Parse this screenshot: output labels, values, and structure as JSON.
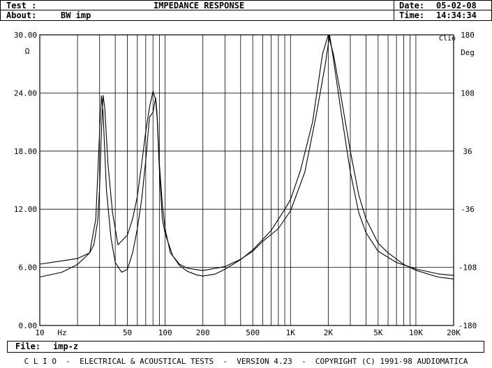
{
  "header": {
    "test_label": "Test :",
    "about_label": "About:",
    "about_value": "BW imp",
    "title": "IMPEDANCE RESPONSE",
    "date_label": "Date:",
    "date_value": "05-02-08",
    "time_label": "Time:",
    "time_value": "14:34:34"
  },
  "brand_mark": "Clio",
  "file": {
    "label": "File:",
    "value": "imp-z"
  },
  "footer": {
    "text": "C L I O  -  ELECTRICAL & ACOUSTICAL TESTS  -  VERSION 4.23  -  COPYRIGHT (C) 1991-98 AUDIOMATICA"
  },
  "chart_data": {
    "type": "line",
    "title": "IMPEDANCE RESPONSE",
    "xscale": "log",
    "xlim": [
      10,
      20000
    ],
    "xlabel": "Hz",
    "x_ticks": [
      {
        "value": 10,
        "label": "10"
      },
      {
        "value": 50,
        "label": "50"
      },
      {
        "value": 100,
        "label": "100"
      },
      {
        "value": 200,
        "label": "200"
      },
      {
        "value": 500,
        "label": "500"
      },
      {
        "value": 1000,
        "label": "1K"
      },
      {
        "value": 2000,
        "label": "2K"
      },
      {
        "value": 5000,
        "label": "5K"
      },
      {
        "value": 10000,
        "label": "10K"
      },
      {
        "value": 20000,
        "label": "20K"
      }
    ],
    "ylim_left": [
      0,
      30
    ],
    "ylabel_left": "Ω",
    "y_ticks_left": [
      "0.00",
      "6.00",
      "12.00",
      "18.00",
      "24.00",
      "30.00"
    ],
    "ylim_right": [
      -180,
      180
    ],
    "ylabel_right": "Deg",
    "y_ticks_right": [
      "-180",
      "-108",
      "-36",
      "36",
      "108",
      "180"
    ],
    "grid": true,
    "series": [
      {
        "axis": "left",
        "color": "#000000",
        "points": [
          [
            10,
            5.0
          ],
          [
            15,
            5.5
          ],
          [
            20,
            6.3
          ],
          [
            25,
            7.5
          ],
          [
            28,
            11
          ],
          [
            30,
            20
          ],
          [
            31,
            23.7
          ],
          [
            32,
            22
          ],
          [
            34,
            14
          ],
          [
            37,
            9
          ],
          [
            40,
            6.5
          ],
          [
            45,
            5.5
          ],
          [
            50,
            5.8
          ],
          [
            55,
            7.5
          ],
          [
            60,
            10
          ],
          [
            65,
            13
          ],
          [
            70,
            17
          ],
          [
            75,
            21.5
          ],
          [
            80,
            22
          ],
          [
            84,
            23.5
          ],
          [
            86,
            22
          ],
          [
            90,
            16
          ],
          [
            95,
            11
          ],
          [
            100,
            9.5
          ],
          [
            115,
            7.2
          ],
          [
            130,
            6.2
          ],
          [
            150,
            5.6
          ],
          [
            180,
            5.2
          ],
          [
            200,
            5.1
          ],
          [
            250,
            5.3
          ],
          [
            300,
            5.8
          ],
          [
            400,
            6.8
          ],
          [
            500,
            7.8
          ],
          [
            700,
            9.8
          ],
          [
            900,
            12
          ],
          [
            1000,
            13
          ],
          [
            1200,
            16
          ],
          [
            1500,
            21
          ],
          [
            1800,
            28
          ],
          [
            2000,
            30
          ],
          [
            2200,
            28
          ],
          [
            2500,
            24
          ],
          [
            3000,
            18
          ],
          [
            3500,
            13.5
          ],
          [
            4000,
            11
          ],
          [
            5000,
            8.5
          ],
          [
            6000,
            7.5
          ],
          [
            8000,
            6.3
          ],
          [
            10000,
            5.7
          ],
          [
            15000,
            5.0
          ],
          [
            20000,
            4.8
          ]
        ]
      },
      {
        "axis": "right",
        "color": "#000000",
        "points": [
          [
            10,
            -104
          ],
          [
            15,
            -100
          ],
          [
            20,
            -97
          ],
          [
            25,
            -90
          ],
          [
            27,
            -80
          ],
          [
            29,
            -50
          ],
          [
            30,
            -10
          ],
          [
            31,
            60
          ],
          [
            32,
            105
          ],
          [
            33,
            90
          ],
          [
            35,
            20
          ],
          [
            38,
            -40
          ],
          [
            42,
            -80
          ],
          [
            50,
            -68
          ],
          [
            55,
            -48
          ],
          [
            60,
            -20
          ],
          [
            65,
            20
          ],
          [
            70,
            60
          ],
          [
            75,
            90
          ],
          [
            80,
            110
          ],
          [
            84,
            100
          ],
          [
            87,
            70
          ],
          [
            90,
            20
          ],
          [
            95,
            -30
          ],
          [
            100,
            -60
          ],
          [
            110,
            -90
          ],
          [
            130,
            -104
          ],
          [
            150,
            -109
          ],
          [
            200,
            -112
          ],
          [
            300,
            -107
          ],
          [
            400,
            -98
          ],
          [
            500,
            -88
          ],
          [
            600,
            -76
          ],
          [
            800,
            -60
          ],
          [
            1000,
            -38
          ],
          [
            1300,
            10
          ],
          [
            1600,
            80
          ],
          [
            1900,
            145
          ],
          [
            2050,
            180
          ],
          [
            2200,
            150
          ],
          [
            2500,
            90
          ],
          [
            3000,
            10
          ],
          [
            3500,
            -40
          ],
          [
            4000,
            -65
          ],
          [
            5000,
            -88
          ],
          [
            7000,
            -102
          ],
          [
            10000,
            -110
          ],
          [
            15000,
            -116
          ],
          [
            20000,
            -118
          ]
        ]
      }
    ]
  }
}
